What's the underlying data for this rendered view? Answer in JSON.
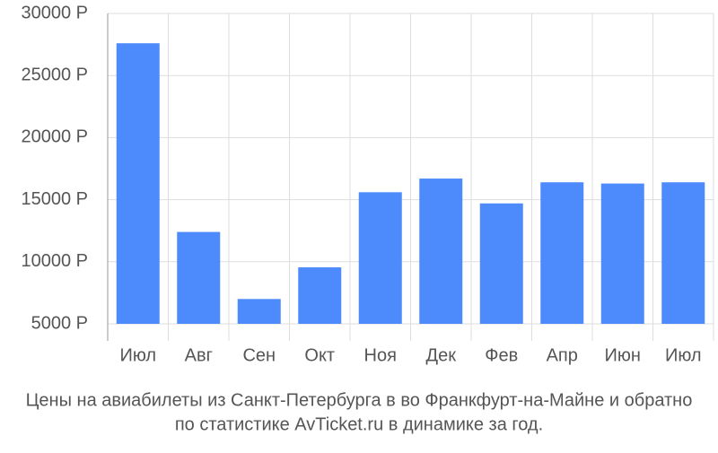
{
  "chart_data": {
    "type": "bar",
    "title": "Цены на авиабилеты из Санкт-Петербурга в во Франкфурт-на-Майне и обратно",
    "subtitle": "по статистике AvTicket.ru в динамике за год.",
    "categories": [
      "Июл",
      "Авг",
      "Сен",
      "Окт",
      "Ноя",
      "Дек",
      "Фев",
      "Апр",
      "Июн",
      "Июл"
    ],
    "values": [
      27600,
      12400,
      7000,
      9550,
      15600,
      16700,
      14700,
      16400,
      16300,
      16400
    ],
    "color": "#4d8afc",
    "ylim": [
      5000,
      30000
    ],
    "yticks": [
      {
        "value": 5000,
        "label": "5000 Р"
      },
      {
        "value": 10000,
        "label": "10000 Р"
      },
      {
        "value": 15000,
        "label": "15000 Р"
      },
      {
        "value": 20000,
        "label": "20000 Р"
      },
      {
        "value": 25000,
        "label": "25000 Р"
      },
      {
        "value": 30000,
        "label": "30000 Р"
      }
    ],
    "grid": true
  }
}
